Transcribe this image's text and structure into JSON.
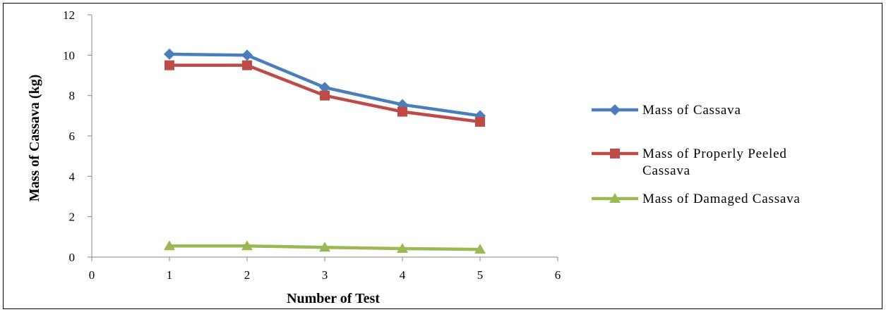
{
  "chart_data": {
    "type": "line",
    "xlabel": "Number  of Test",
    "ylabel": "Mass of Cassava (kg)",
    "xlim": [
      0,
      6
    ],
    "ylim": [
      0,
      12
    ],
    "x_ticks": [
      0,
      1,
      2,
      3,
      4,
      5,
      6
    ],
    "y_ticks": [
      0,
      2,
      4,
      6,
      8,
      10,
      12
    ],
    "grid": false,
    "legend_position": "right",
    "x": [
      1,
      2,
      3,
      4,
      5
    ],
    "series": [
      {
        "name": "Mass of Cassava",
        "values": [
          10.05,
          10.0,
          8.4,
          7.55,
          7.0
        ],
        "color": "#4a7ebb",
        "marker": "diamond"
      },
      {
        "name": "Mass of Properly Peeled Cassava",
        "name_lines": [
          "Mass of Properly Peeled",
          "Cassava"
        ],
        "values": [
          9.5,
          9.5,
          8.0,
          7.2,
          6.7
        ],
        "color": "#be4b48",
        "marker": "square"
      },
      {
        "name": "Mass of Damaged Cassava",
        "values": [
          0.55,
          0.55,
          0.48,
          0.42,
          0.38
        ],
        "color": "#98b954",
        "marker": "triangle"
      }
    ]
  }
}
